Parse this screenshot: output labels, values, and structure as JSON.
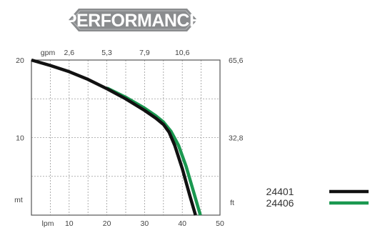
{
  "chart_data": {
    "type": "line",
    "title": "PERFORMANCE",
    "x_bottom": {
      "unit": "lpm",
      "ticks": [
        "10",
        "20",
        "30",
        "40",
        "50"
      ],
      "range": [
        0,
        50
      ]
    },
    "x_top": {
      "unit": "gpm",
      "ticks": [
        "2,6",
        "5,3",
        "7,9",
        "10,6"
      ]
    },
    "y_left": {
      "unit": "mt",
      "ticks": [
        "10",
        "20"
      ],
      "range": [
        0,
        20
      ]
    },
    "y_right": {
      "unit": "ft",
      "ticks": [
        "32,8",
        "65,6"
      ]
    },
    "grid": true,
    "legend_position": "bottom-right",
    "series": [
      {
        "name": "24401",
        "color": "#111111",
        "points": [
          [
            0,
            20
          ],
          [
            5,
            19.3
          ],
          [
            10,
            18.5
          ],
          [
            15,
            17.5
          ],
          [
            20,
            16.3
          ],
          [
            25,
            15.0
          ],
          [
            30,
            13.5
          ],
          [
            33,
            12.5
          ],
          [
            35,
            11.7
          ],
          [
            36.5,
            10.7
          ],
          [
            38,
            9.0
          ],
          [
            40,
            6.0
          ],
          [
            42,
            2.5
          ],
          [
            43.5,
            0
          ]
        ]
      },
      {
        "name": "24406",
        "color": "#1a9850",
        "points": [
          [
            20,
            16.4
          ],
          [
            25,
            15.2
          ],
          [
            30,
            13.8
          ],
          [
            33,
            12.8
          ],
          [
            35,
            12.0
          ],
          [
            37,
            10.8
          ],
          [
            39,
            9.0
          ],
          [
            41,
            6.3
          ],
          [
            43,
            3.0
          ],
          [
            44.8,
            0
          ]
        ]
      }
    ]
  }
}
